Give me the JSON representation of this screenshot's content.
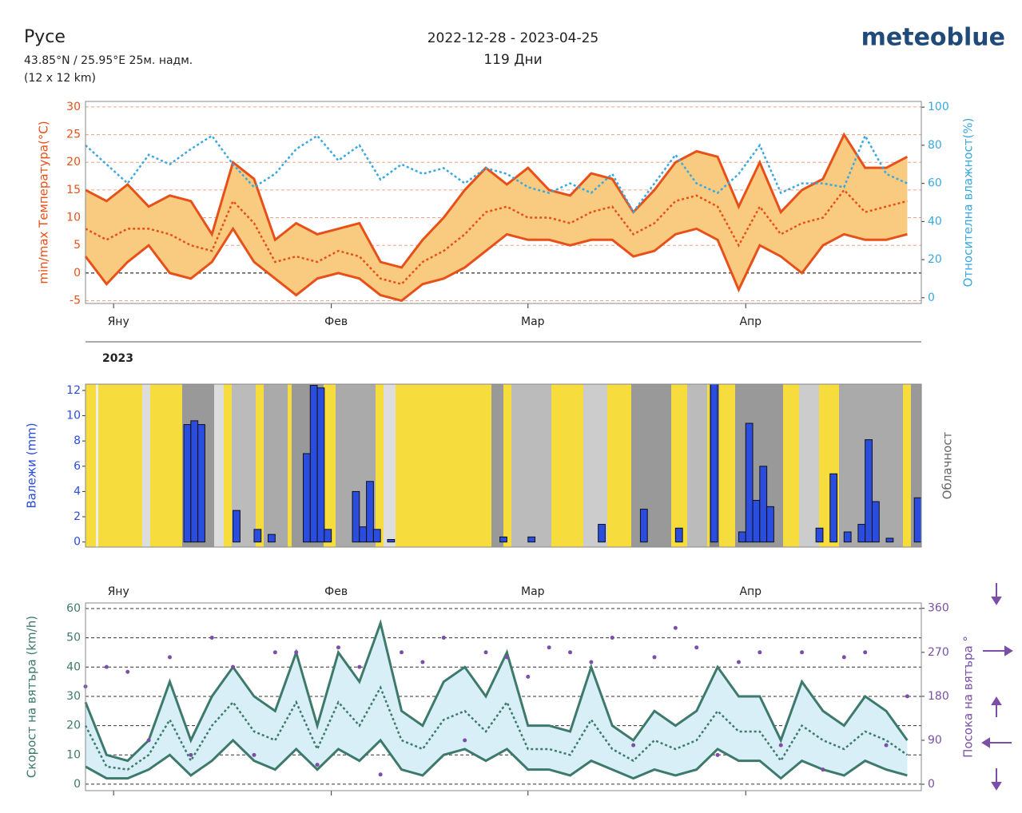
{
  "header": {
    "title": "Русе",
    "coords": "43.85°N / 25.95°E   25м. надм.",
    "grid": "(12 x 12 km)",
    "period": "2022-12-28 - 2023-04-25",
    "days": "119 Дни",
    "logo": "meteoblue"
  },
  "chart_data": [
    {
      "type": "line",
      "ylabel": "min/max Температура(°C)",
      "y2label": "Относителна влажност(%)",
      "year_label": "2023",
      "x": [
        0,
        3,
        6,
        9,
        12,
        15,
        18,
        21,
        24,
        27,
        30,
        33,
        36,
        39,
        42,
        45,
        48,
        51,
        54,
        57,
        60,
        63,
        66,
        69,
        72,
        75,
        78,
        81,
        84,
        87,
        90,
        93,
        96,
        99,
        102,
        105,
        108,
        111,
        114,
        117
      ],
      "xlim": [
        0,
        119
      ],
      "xticks": [
        {
          "value": 4,
          "label": "Яну"
        },
        {
          "value": 35,
          "label": "Фев"
        },
        {
          "value": 63,
          "label": "Мар"
        },
        {
          "value": 94,
          "label": "Апр"
        }
      ],
      "ylim": [
        -5.5,
        31
      ],
      "yticks": [
        -5,
        0,
        5,
        10,
        15,
        20,
        25,
        30
      ],
      "y2lim": [
        -3,
        103
      ],
      "y2ticks": [
        0,
        20,
        40,
        60,
        80,
        100
      ],
      "grid": true,
      "fill": "#f9cb80",
      "series": [
        {
          "color": "#e8501a",
          "values": [
            15,
            13,
            16,
            12,
            14,
            13,
            7,
            20,
            17,
            6,
            9,
            7,
            8,
            9,
            2,
            1,
            6,
            10,
            15,
            19,
            16,
            19,
            15,
            14,
            18,
            17,
            11,
            15,
            20,
            22,
            21,
            12,
            20,
            11,
            15,
            17,
            25,
            19,
            19,
            21
          ]
        },
        {
          "color": "#e8501a",
          "dashed": true,
          "values": [
            8,
            6,
            8,
            8,
            7,
            5,
            4,
            13,
            9,
            2,
            3,
            2,
            4,
            3,
            -1,
            -2,
            2,
            4,
            7,
            11,
            12,
            10,
            10,
            9,
            11,
            12,
            7,
            9,
            13,
            14,
            12,
            5,
            12,
            7,
            9,
            10,
            15,
            11,
            12,
            13
          ]
        },
        {
          "color": "#e8501a",
          "values": [
            3,
            -2,
            2,
            5,
            0,
            -1,
            2,
            8,
            2,
            -1,
            -4,
            -1,
            0,
            -1,
            -4,
            -5,
            -2,
            -1,
            1,
            4,
            7,
            6,
            6,
            5,
            6,
            6,
            3,
            4,
            7,
            8,
            6,
            -3,
            5,
            3,
            0,
            5,
            7,
            6,
            6,
            7
          ]
        },
        {
          "color": "#3aa8e0",
          "dashed": true,
          "axis": "y2",
          "values": [
            80,
            70,
            60,
            75,
            70,
            78,
            85,
            70,
            58,
            65,
            78,
            85,
            72,
            80,
            62,
            70,
            65,
            68,
            60,
            68,
            65,
            58,
            55,
            60,
            55,
            65,
            45,
            60,
            75,
            60,
            55,
            65,
            80,
            55,
            60,
            60,
            58,
            85,
            65,
            60
          ]
        }
      ]
    },
    {
      "type": "bar",
      "ylabel": "Валежи (mm)",
      "y2label": "Облачност",
      "color": "#2a4de0",
      "x": [
        14,
        15,
        16,
        21,
        24,
        26,
        31,
        32,
        33,
        34,
        38,
        39,
        40,
        41,
        43,
        59,
        63,
        73,
        79,
        84,
        89,
        93,
        94,
        95,
        96,
        97,
        104,
        106,
        108,
        110,
        111,
        112,
        114,
        118
      ],
      "values": [
        9.3,
        9.6,
        9.3,
        2.5,
        1,
        0.6,
        7,
        12.4,
        12.2,
        1,
        4,
        1.2,
        4.8,
        1,
        0.2,
        0.4,
        0.4,
        1.4,
        2.6,
        1.1,
        12.5,
        0.8,
        9.4,
        3.3,
        6,
        2.8,
        1.1,
        5.4,
        0.8,
        1.4,
        8.1,
        3.2,
        0.3,
        3.5
      ],
      "xlim": [
        0,
        119
      ],
      "ylim": [
        -0.4,
        12.5
      ],
      "yticks": [
        0,
        2,
        4,
        6,
        8,
        10,
        12
      ]
    },
    {
      "type": "line",
      "ylabel": "Скорост на вятъра (km/h)",
      "y2label": "Посока на вятъра °",
      "x": [
        0,
        3,
        6,
        9,
        12,
        15,
        18,
        21,
        24,
        27,
        30,
        33,
        36,
        39,
        42,
        45,
        48,
        51,
        54,
        57,
        60,
        63,
        66,
        69,
        72,
        75,
        78,
        81,
        84,
        87,
        90,
        93,
        96,
        99,
        102,
        105,
        108,
        111,
        114,
        117
      ],
      "xlim": [
        0,
        119
      ],
      "xticks": [
        {
          "value": 4,
          "label": "Яну"
        },
        {
          "value": 35,
          "label": "Фев"
        },
        {
          "value": 63,
          "label": "Мар"
        },
        {
          "value": 94,
          "label": "Апр"
        }
      ],
      "ylim": [
        -2.2,
        61.9
      ],
      "yticks": [
        0,
        10,
        20,
        30,
        40,
        50,
        60
      ],
      "y2lim": [
        -13,
        371
      ],
      "y2ticks": [
        0,
        90,
        180,
        270,
        360
      ],
      "grid": true,
      "fill": "#d9eff8",
      "series": [
        {
          "color": "#3d7a6b",
          "values": [
            28,
            10,
            8,
            15,
            35,
            15,
            30,
            40,
            30,
            25,
            45,
            20,
            45,
            35,
            55,
            25,
            20,
            35,
            40,
            30,
            45,
            20,
            20,
            18,
            40,
            20,
            15,
            25,
            20,
            25,
            40,
            30,
            30,
            15,
            35,
            25,
            20,
            30,
            25,
            15
          ]
        },
        {
          "color": "#3d7a6b",
          "dashed": true,
          "values": [
            20,
            6,
            5,
            10,
            22,
            8,
            20,
            28,
            18,
            15,
            28,
            12,
            28,
            20,
            33,
            15,
            12,
            22,
            25,
            18,
            28,
            12,
            12,
            10,
            22,
            12,
            8,
            15,
            12,
            15,
            25,
            18,
            18,
            8,
            20,
            15,
            12,
            18,
            15,
            10
          ]
        },
        {
          "color": "#3d7a6b",
          "values": [
            6,
            2,
            2,
            5,
            10,
            3,
            8,
            15,
            8,
            5,
            12,
            5,
            12,
            8,
            15,
            5,
            3,
            10,
            12,
            8,
            12,
            5,
            5,
            3,
            8,
            5,
            2,
            5,
            3,
            5,
            12,
            8,
            8,
            2,
            8,
            5,
            3,
            8,
            5,
            3
          ]
        },
        {
          "color": "#7b4fa8",
          "scatter": true,
          "axis": "y2",
          "values": [
            200,
            240,
            230,
            90,
            260,
            60,
            300,
            240,
            60,
            270,
            270,
            40,
            280,
            240,
            20,
            270,
            250,
            300,
            90,
            270,
            260,
            220,
            280,
            270,
            250,
            300,
            80,
            260,
            320,
            280,
            60,
            250,
            270,
            80,
            270,
            30,
            260,
            270,
            80,
            180
          ]
        }
      ]
    }
  ]
}
